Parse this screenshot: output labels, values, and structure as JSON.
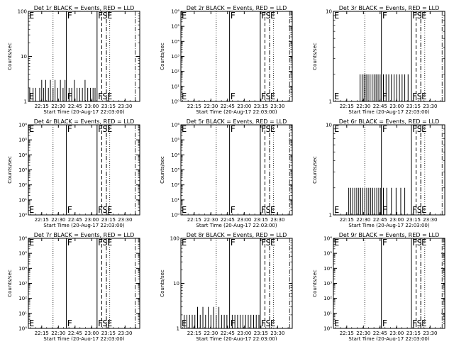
{
  "chart_data": [
    {
      "type": "line",
      "title": "Det 1r BLACK = Events, RED = LLD",
      "xlabel": "Start Time (20-Aug-17 22:03:00)",
      "ylabel": "Counts/sec",
      "yscale": "log",
      "ylim": [
        1,
        100
      ],
      "yticks": [
        "1",
        "10",
        "100"
      ],
      "xlim": [
        22.05,
        23.72
      ],
      "xticks": [
        "22:15",
        "22:30",
        "22:45",
        "23:00",
        "23:15",
        "23:30"
      ],
      "grid": false,
      "markers": [
        {
          "label": "E",
          "x": 22.05,
          "style": "solid"
        },
        {
          "label": "F",
          "x": 22.62,
          "style": "solid"
        },
        {
          "label": "F",
          "x": 23.08,
          "style": "solid"
        },
        {
          "label": "S",
          "x": 23.15,
          "style": "dashed"
        },
        {
          "label": "E",
          "x": 23.22,
          "style": "dashdot"
        }
      ],
      "dotted_x": [
        22.42,
        23.27
      ],
      "dashdot_x": [
        23.65
      ],
      "series": [
        {
          "spikes": [
            [
              22.07,
              2
            ],
            [
              22.12,
              2
            ],
            [
              22.16,
              2
            ],
            [
              22.22,
              2
            ],
            [
              22.25,
              3
            ],
            [
              22.28,
              2
            ],
            [
              22.31,
              3
            ],
            [
              22.35,
              2
            ],
            [
              22.38,
              3
            ],
            [
              22.42,
              2
            ],
            [
              22.45,
              3
            ],
            [
              22.49,
              2
            ],
            [
              22.53,
              3
            ],
            [
              22.57,
              2
            ],
            [
              22.6,
              3
            ],
            [
              22.66,
              2
            ],
            [
              22.7,
              2
            ],
            [
              22.74,
              3
            ],
            [
              22.78,
              2
            ],
            [
              22.82,
              2
            ],
            [
              22.86,
              2
            ],
            [
              22.9,
              3
            ],
            [
              22.94,
              2
            ],
            [
              22.98,
              2
            ],
            [
              23.02,
              2
            ],
            [
              23.05,
              2
            ]
          ]
        }
      ]
    },
    {
      "type": "line",
      "title": "Det 2r BLACK = Events, RED = LLD",
      "xlabel": "Start Time (20-Aug-17 22:03:00)",
      "ylabel": "Counts/sec",
      "yscale": "log",
      "ylim": [
        1,
        1000000
      ],
      "yticks": [
        "10⁰",
        "10¹",
        "10²",
        "10³",
        "10⁴",
        "10⁵",
        "10⁶"
      ],
      "xlim": [
        22.05,
        23.72
      ],
      "xticks": [
        "22:15",
        "22:30",
        "22:45",
        "23:00",
        "23:15",
        "23:30"
      ],
      "grid": false,
      "markers": [
        {
          "label": "E",
          "x": 22.05,
          "style": "solid"
        },
        {
          "label": "F",
          "x": 22.78,
          "style": "solid"
        },
        {
          "label": "F",
          "x": 23.24,
          "style": "solid"
        },
        {
          "label": "S",
          "x": 23.31,
          "style": "dashed"
        },
        {
          "label": "E",
          "x": 23.38,
          "style": "dashdot"
        }
      ],
      "dotted_x": [
        22.58,
        23.44
      ],
      "dashdot_x": [
        23.68
      ],
      "series": [
        {
          "spikes": []
        }
      ]
    },
    {
      "type": "line",
      "title": "Det 3r BLACK = Events, RED = LLD",
      "xlabel": "Start Time (20-Aug-17 22:03:00)",
      "ylabel": "Counts/sec",
      "yscale": "log",
      "ylim": [
        1,
        10
      ],
      "yticks": [
        "1",
        "10"
      ],
      "xlim": [
        22.05,
        23.72
      ],
      "xticks": [
        "22:15",
        "22:30",
        "22:45",
        "23:00",
        "23:15",
        "23:30"
      ],
      "grid": false,
      "markers": [
        {
          "label": "E",
          "x": 22.05,
          "style": "solid"
        },
        {
          "label": "F",
          "x": 22.77,
          "style": "solid"
        },
        {
          "label": "F",
          "x": 23.22,
          "style": "solid"
        },
        {
          "label": "S",
          "x": 23.29,
          "style": "dashed"
        },
        {
          "label": "E",
          "x": 23.36,
          "style": "dashdot"
        }
      ],
      "dotted_x": [
        22.52,
        23.42
      ],
      "dashdot_x": [
        23.68
      ],
      "series": [
        {
          "spikes": [
            [
              22.45,
              2
            ],
            [
              22.48,
              2
            ],
            [
              22.51,
              2
            ],
            [
              22.54,
              2
            ],
            [
              22.57,
              2
            ],
            [
              22.6,
              2
            ],
            [
              22.63,
              2
            ],
            [
              22.66,
              2
            ],
            [
              22.69,
              2
            ],
            [
              22.72,
              2
            ],
            [
              22.75,
              2
            ],
            [
              22.8,
              2
            ],
            [
              22.84,
              2
            ],
            [
              22.88,
              2
            ],
            [
              22.92,
              2
            ],
            [
              22.96,
              2
            ],
            [
              23.0,
              2
            ],
            [
              23.04,
              2
            ],
            [
              23.08,
              2
            ],
            [
              23.12,
              2
            ],
            [
              23.17,
              2
            ]
          ]
        }
      ]
    },
    {
      "type": "line",
      "title": "Det 4r BLACK = Events, RED = LLD",
      "xlabel": "Start Time (20-Aug-17 22:03:00)",
      "ylabel": "Counts/sec",
      "yscale": "log",
      "ylim": [
        1,
        1000000
      ],
      "yticks": [
        "10⁰",
        "10¹",
        "10²",
        "10³",
        "10⁴",
        "10⁵",
        "10⁶"
      ],
      "xlim": [
        22.05,
        23.72
      ],
      "xticks": [
        "22:15",
        "22:30",
        "22:45",
        "23:00",
        "23:15",
        "23:30"
      ],
      "grid": false,
      "markers": [
        {
          "label": "E",
          "x": 22.05,
          "style": "solid"
        },
        {
          "label": "F",
          "x": 22.62,
          "style": "solid"
        },
        {
          "label": "F",
          "x": 23.08,
          "style": "solid"
        },
        {
          "label": "S",
          "x": 23.15,
          "style": "dashed"
        },
        {
          "label": "E",
          "x": 23.22,
          "style": "dashdot"
        }
      ],
      "dotted_x": [
        22.42,
        23.27
      ],
      "dashdot_x": [
        23.65
      ],
      "series": [
        {
          "spikes": []
        }
      ]
    },
    {
      "type": "line",
      "title": "Det 5r BLACK = Events, RED = LLD",
      "xlabel": "Start Time (20-Aug-17 22:03:00)",
      "ylabel": "Counts/sec",
      "yscale": "log",
      "ylim": [
        1,
        1000000
      ],
      "yticks": [
        "10⁰",
        "10¹",
        "10²",
        "10³",
        "10⁴",
        "10⁵",
        "10⁶"
      ],
      "xlim": [
        22.05,
        23.72
      ],
      "xticks": [
        "22:15",
        "22:30",
        "22:45",
        "23:00",
        "23:15",
        "23:30"
      ],
      "grid": false,
      "markers": [
        {
          "label": "E",
          "x": 22.05,
          "style": "solid"
        },
        {
          "label": "F",
          "x": 22.78,
          "style": "solid"
        },
        {
          "label": "F",
          "x": 23.24,
          "style": "solid"
        },
        {
          "label": "S",
          "x": 23.31,
          "style": "dashed"
        },
        {
          "label": "E",
          "x": 23.38,
          "style": "dashdot"
        }
      ],
      "dotted_x": [
        22.58,
        23.44
      ],
      "dashdot_x": [
        23.68
      ],
      "series": [
        {
          "spikes": []
        }
      ]
    },
    {
      "type": "line",
      "title": "Det 6r BLACK = Events, RED = LLD",
      "xlabel": "Start Time (20-Aug-17 22:03:00)",
      "ylabel": "Counts/sec",
      "yscale": "log",
      "ylim": [
        1,
        10
      ],
      "yticks": [
        "1",
        "10"
      ],
      "xlim": [
        22.05,
        23.72
      ],
      "xticks": [
        "22:15",
        "22:30",
        "22:45",
        "23:00",
        "23:15",
        "23:30"
      ],
      "grid": false,
      "markers": [
        {
          "label": "E",
          "x": 22.05,
          "style": "solid"
        },
        {
          "label": "F",
          "x": 22.77,
          "style": "solid"
        },
        {
          "label": "F",
          "x": 23.22,
          "style": "solid"
        },
        {
          "label": "S",
          "x": 23.29,
          "style": "dashed"
        },
        {
          "label": "E",
          "x": 23.36,
          "style": "dashdot"
        }
      ],
      "dotted_x": [
        22.52,
        23.42
      ],
      "dashdot_x": [
        23.68
      ],
      "series": [
        {
          "spikes": [
            [
              22.28,
              2
            ],
            [
              22.31,
              2
            ],
            [
              22.34,
              2
            ],
            [
              22.37,
              2
            ],
            [
              22.4,
              2
            ],
            [
              22.43,
              2
            ],
            [
              22.46,
              2
            ],
            [
              22.49,
              2
            ],
            [
              22.52,
              2
            ],
            [
              22.55,
              2
            ],
            [
              22.58,
              2
            ],
            [
              22.61,
              2
            ],
            [
              22.64,
              2
            ],
            [
              22.67,
              2
            ],
            [
              22.7,
              2
            ],
            [
              22.73,
              2
            ],
            [
              22.76,
              2
            ],
            [
              22.8,
              2
            ],
            [
              22.85,
              2
            ],
            [
              22.92,
              2
            ],
            [
              22.99,
              2
            ],
            [
              23.06,
              2
            ],
            [
              23.12,
              2
            ]
          ]
        }
      ]
    },
    {
      "type": "line",
      "title": "Det 7r BLACK = Events, RED = LLD",
      "xlabel": "Start Time (20-Aug-17 22:03:00)",
      "ylabel": "Counts/sec",
      "yscale": "log",
      "ylim": [
        1,
        1000000
      ],
      "yticks": [
        "10⁰",
        "10¹",
        "10²",
        "10³",
        "10⁴",
        "10⁵",
        "10⁶"
      ],
      "xlim": [
        22.05,
        23.72
      ],
      "xticks": [
        "22:15",
        "22:30",
        "22:45",
        "23:00",
        "23:15",
        "23:30"
      ],
      "grid": false,
      "markers": [
        {
          "label": "E",
          "x": 22.05,
          "style": "solid"
        },
        {
          "label": "F",
          "x": 22.62,
          "style": "solid"
        },
        {
          "label": "F",
          "x": 23.08,
          "style": "solid"
        },
        {
          "label": "S",
          "x": 23.15,
          "style": "dashed"
        },
        {
          "label": "E",
          "x": 23.22,
          "style": "dashdot"
        }
      ],
      "dotted_x": [
        22.42,
        23.27
      ],
      "dashdot_x": [
        23.65
      ],
      "series": [
        {
          "spikes": []
        }
      ]
    },
    {
      "type": "line",
      "title": "Det 8r BLACK = Events, RED = LLD",
      "xlabel": "Start Time (20-Aug-17 22:03:00)",
      "ylabel": "Counts/sec",
      "yscale": "log",
      "ylim": [
        1,
        100
      ],
      "yticks": [
        "1",
        "10",
        "100"
      ],
      "xlim": [
        22.05,
        23.72
      ],
      "xticks": [
        "22:15",
        "22:30",
        "22:45",
        "23:00",
        "23:15",
        "23:30"
      ],
      "grid": false,
      "markers": [
        {
          "label": "E",
          "x": 22.05,
          "style": "solid"
        },
        {
          "label": "F",
          "x": 22.78,
          "style": "solid"
        },
        {
          "label": "F",
          "x": 23.24,
          "style": "solid"
        },
        {
          "label": "S",
          "x": 23.31,
          "style": "dashed"
        },
        {
          "label": "E",
          "x": 23.38,
          "style": "dashdot"
        }
      ],
      "dotted_x": [
        22.58,
        23.44
      ],
      "dashdot_x": [
        23.68
      ],
      "series": [
        {
          "spikes": [
            [
              22.1,
              2
            ],
            [
              22.14,
              2
            ],
            [
              22.18,
              2
            ],
            [
              22.22,
              2
            ],
            [
              22.26,
              2
            ],
            [
              22.3,
              3
            ],
            [
              22.34,
              2
            ],
            [
              22.38,
              3
            ],
            [
              22.42,
              2
            ],
            [
              22.46,
              3
            ],
            [
              22.5,
              2
            ],
            [
              22.54,
              3
            ],
            [
              22.58,
              2
            ],
            [
              22.62,
              3
            ],
            [
              22.66,
              2
            ],
            [
              22.7,
              2
            ],
            [
              22.74,
              2
            ],
            [
              22.82,
              2
            ],
            [
              22.86,
              2
            ],
            [
              22.9,
              2
            ],
            [
              22.94,
              2
            ],
            [
              22.98,
              2
            ],
            [
              23.02,
              2
            ],
            [
              23.06,
              2
            ],
            [
              23.1,
              2
            ],
            [
              23.14,
              2
            ],
            [
              23.18,
              2
            ],
            [
              23.22,
              2
            ]
          ]
        }
      ]
    },
    {
      "type": "line",
      "title": "Det 9r BLACK = Events, RED = LLD",
      "xlabel": "Start Time (20-Aug-17 22:03:00)",
      "ylabel": "Counts/sec",
      "yscale": "log",
      "ylim": [
        1,
        1000000
      ],
      "yticks": [
        "10⁰",
        "10¹",
        "10²",
        "10³",
        "10⁴",
        "10⁵",
        "10⁶"
      ],
      "xlim": [
        22.05,
        23.72
      ],
      "xticks": [
        "22:15",
        "22:30",
        "22:45",
        "23:00",
        "23:15",
        "23:30"
      ],
      "grid": false,
      "markers": [
        {
          "label": "E",
          "x": 22.05,
          "style": "solid"
        },
        {
          "label": "F",
          "x": 22.77,
          "style": "solid"
        },
        {
          "label": "F",
          "x": 23.22,
          "style": "solid"
        },
        {
          "label": "S",
          "x": 23.29,
          "style": "dashed"
        },
        {
          "label": "E",
          "x": 23.36,
          "style": "dashdot"
        }
      ],
      "dotted_x": [
        22.52,
        23.42
      ],
      "dashdot_x": [
        23.68
      ],
      "series": [
        {
          "spikes": []
        }
      ]
    }
  ]
}
